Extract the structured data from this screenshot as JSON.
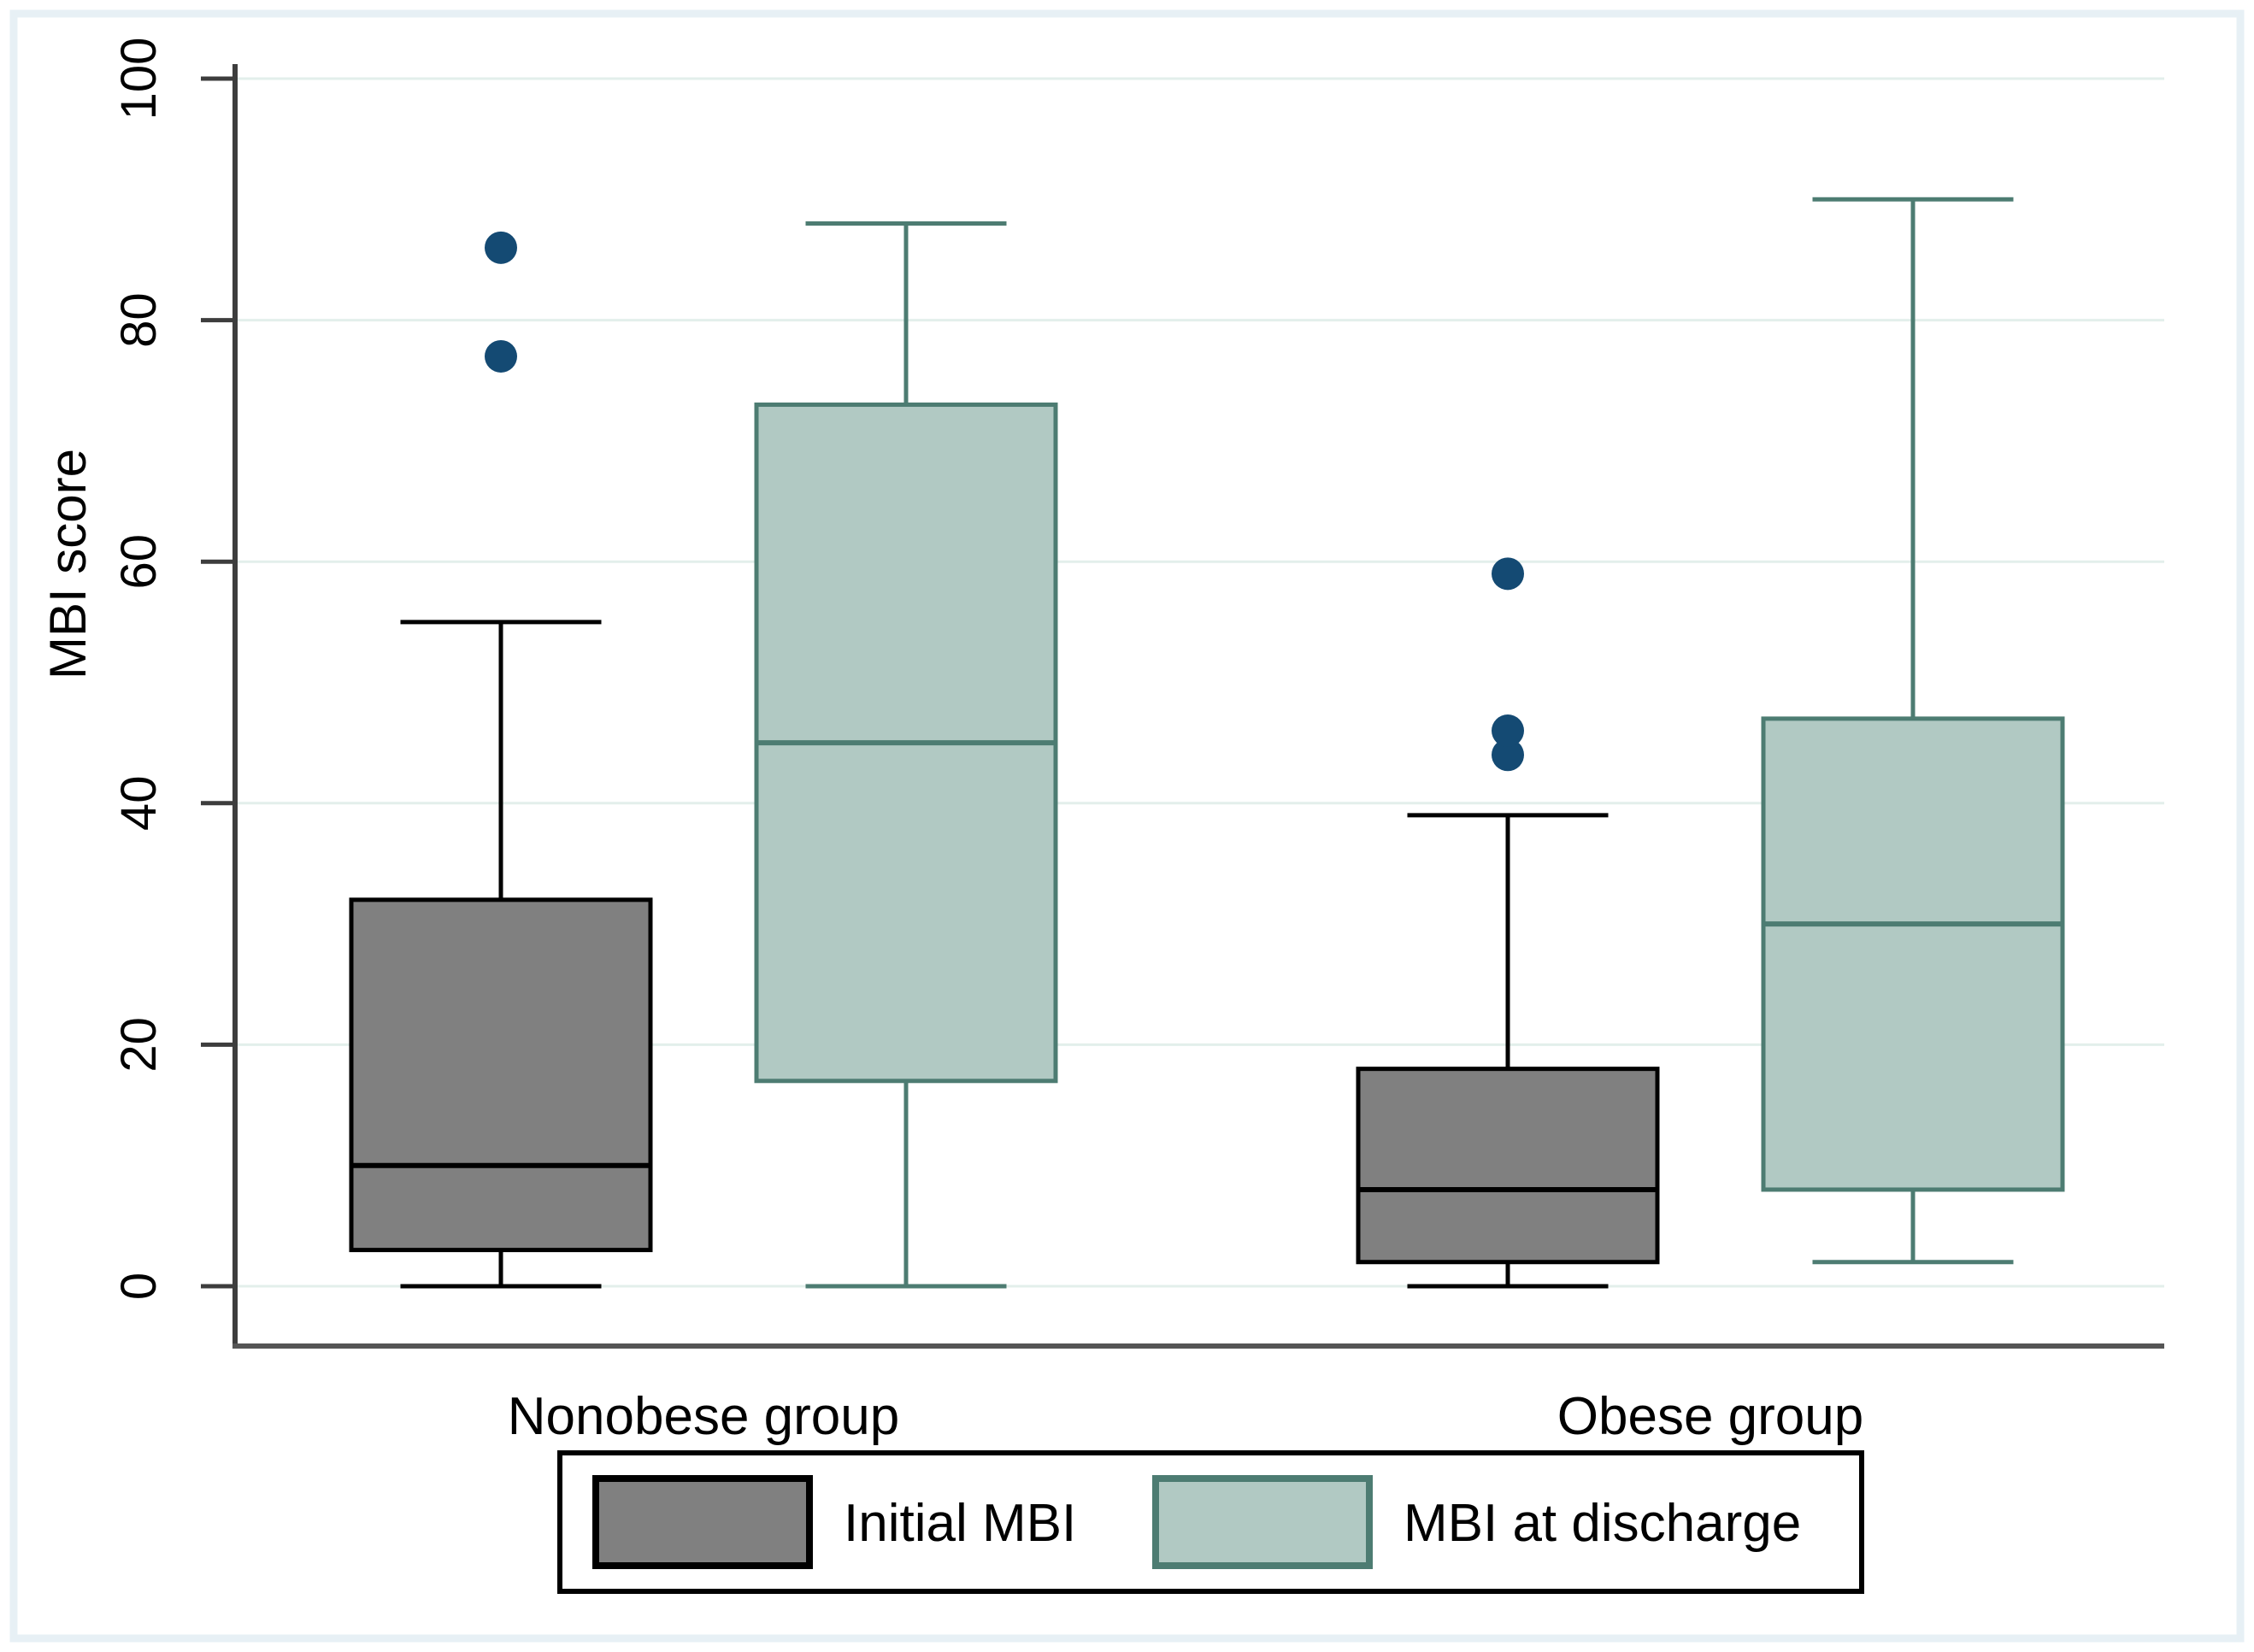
{
  "figure": {
    "background": "#ffffff",
    "frame_color": "#e7f0f5",
    "axis_color": "#3d3d3d",
    "grid_color": "#e3efeb",
    "text_color": "#000000"
  },
  "chart_data": {
    "type": "boxplot",
    "title": "",
    "xlabel": "",
    "ylabel": "MBI score",
    "y_ticks": [
      0,
      20,
      40,
      60,
      80,
      100
    ],
    "ylim": [
      0,
      104
    ],
    "grid": true,
    "grid_orientation": "horizontal",
    "outlier_color": "#144a73",
    "groups": [
      {
        "label": "Nonobese group"
      },
      {
        "label": "Obese group"
      }
    ],
    "series": [
      {
        "name": "Initial MBI",
        "fill": "#808080",
        "stroke": "#000000"
      },
      {
        "name": "MBI at discharge",
        "fill": "#b1c9c3",
        "stroke": "#4d7c72"
      }
    ],
    "boxes": [
      {
        "group": "Nonobese group",
        "series": "Initial MBI",
        "whisker_low": 0,
        "q1": 3,
        "median": 10,
        "q3": 32,
        "whisker_high": 55,
        "outliers": [
          77,
          86
        ]
      },
      {
        "group": "Nonobese group",
        "series": "MBI at discharge",
        "whisker_low": 0,
        "q1": 17,
        "median": 45,
        "q3": 73,
        "whisker_high": 88,
        "outliers": []
      },
      {
        "group": "Obese group",
        "series": "Initial MBI",
        "whisker_low": 0,
        "q1": 2,
        "median": 8,
        "q3": 18,
        "whisker_high": 39,
        "outliers": [
          44,
          46,
          59
        ]
      },
      {
        "group": "Obese group",
        "series": "MBI at discharge",
        "whisker_low": 2,
        "q1": 8,
        "median": 30,
        "q3": 47,
        "whisker_high": 90,
        "outliers": []
      }
    ],
    "legend": {
      "position": "bottom",
      "entries": [
        "Initial MBI",
        "MBI at discharge"
      ]
    }
  }
}
